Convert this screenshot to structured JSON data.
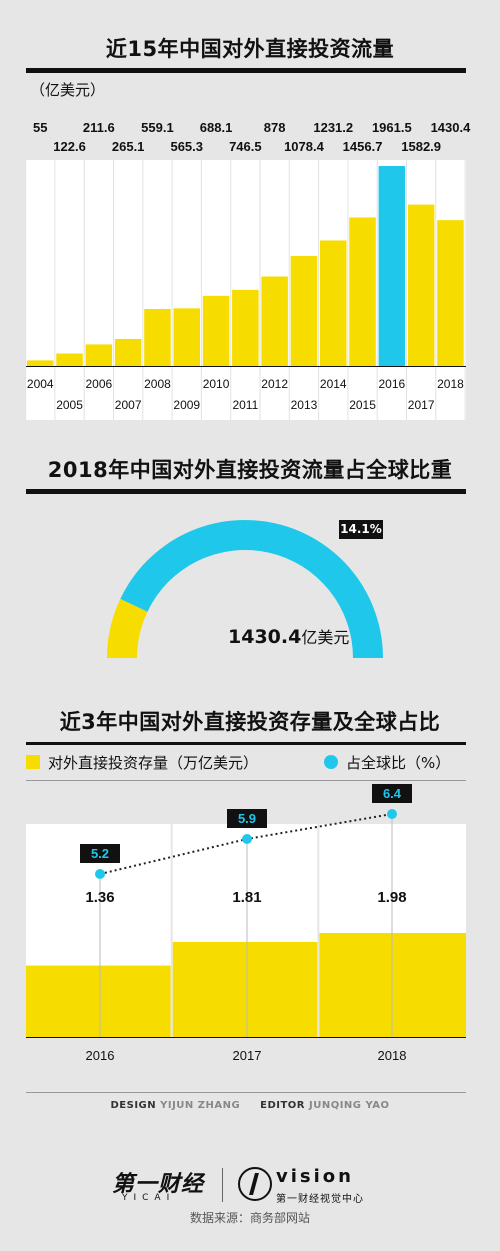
{
  "flow_section": {
    "title": "近15年中国对外直接投资流量",
    "unit": "（亿美元）"
  },
  "share_section": {
    "title": "2018年中国对外直接投资流量占全球比重",
    "percent_label": "14.1%",
    "value_number": "1430.4",
    "value_unit": "亿美元"
  },
  "stock_section": {
    "title": "近3年中国对外直接投资存量及全球占比",
    "legend_bar": "对外直接投资存量（万亿美元）",
    "legend_dot": "占全球比（%）"
  },
  "credits": {
    "design_label": "DESIGN",
    "design_name": "YIJUN ZHANG",
    "editor_label": "EDITOR",
    "editor_name": "JUNQING YAO"
  },
  "brand": {
    "logo_cn": "第一财经",
    "logo_en": "YICAI",
    "vision_word": "vision",
    "vision_sub": "第一财经视觉中心"
  },
  "source": "数据来源：商务部网站",
  "colors": {
    "yellow": "#f7dc00",
    "cyan": "#1fc8ea",
    "black": "#111111",
    "background": "#e6e6e6"
  },
  "chart_data": [
    {
      "type": "bar",
      "title": "近15年中国对外直接投资流量",
      "ylabel": "（亿美元）",
      "categories": [
        "2004",
        "2005",
        "2006",
        "2007",
        "2008",
        "2009",
        "2010",
        "2011",
        "2012",
        "2013",
        "2014",
        "2015",
        "2016",
        "2017",
        "2018"
      ],
      "values": [
        55,
        122.6,
        211.6,
        265.1,
        559.1,
        565.3,
        688.1,
        746.5,
        878,
        1078.4,
        1231.2,
        1456.7,
        1961.5,
        1582.9,
        1430.4
      ],
      "value_labels": [
        "55",
        "122.6",
        "211.6",
        "265.1",
        "559.1",
        "565.3",
        "688.1",
        "746.5",
        "878",
        "1078.4",
        "1231.2",
        "1456.7",
        "1961.5",
        "1582.9",
        "1430.4"
      ],
      "highlight": "2016",
      "ylim": [
        0,
        2000
      ]
    },
    {
      "type": "pie",
      "title": "2018年中国对外直接投资流量占全球比重",
      "style": "semicircle",
      "values": [
        14.1,
        85.9
      ],
      "highlight_label": "14.1%"
    },
    {
      "type": "bar",
      "title": "近3年中国对外直接投资存量及全球占比",
      "categories": [
        "2016",
        "2017",
        "2018"
      ],
      "series": [
        {
          "name": "对外直接投资存量（万亿美元）",
          "values": [
            1.36,
            1.81,
            1.98
          ],
          "labels": [
            "1.36",
            "1.81",
            "1.98"
          ]
        },
        {
          "name": "占全球比（%）",
          "type": "line",
          "values": [
            5.2,
            5.9,
            6.4
          ],
          "labels": [
            "5.2",
            "5.9",
            "6.4"
          ]
        }
      ]
    }
  ]
}
